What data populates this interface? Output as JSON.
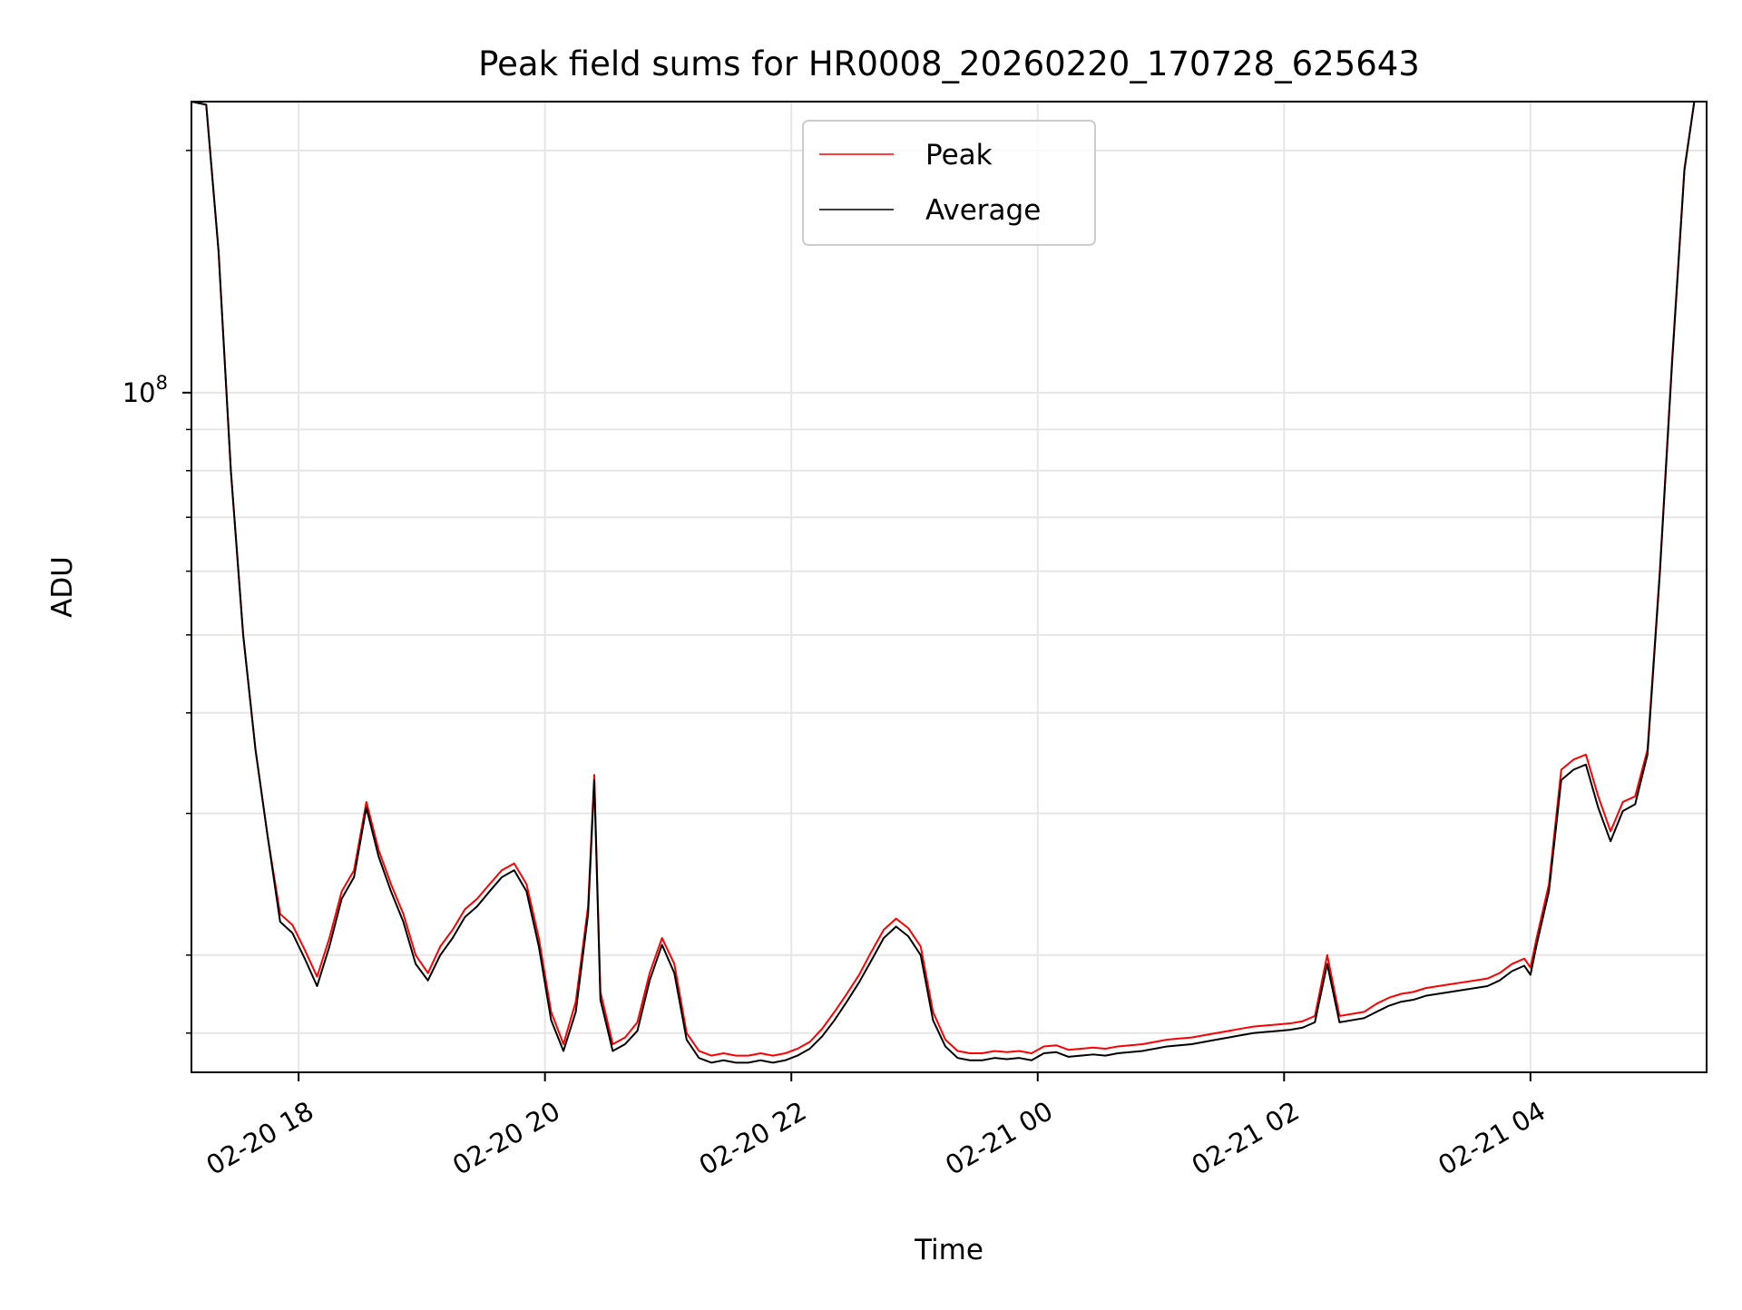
{
  "chart_data": {
    "type": "line",
    "title": "Peak field sums for HR0008_20260220_170728_625643",
    "xlabel": "Time",
    "ylabel": "ADU",
    "yscale": "log",
    "x_unit": "hours since 2026-02-20 00:00",
    "xlim": [
      17.13,
      29.43
    ],
    "ylim": [
      14300000,
      230000000
    ],
    "grid": true,
    "legend_position": "upper center",
    "x_ticks": [
      {
        "value": 18,
        "label": "02-20 18"
      },
      {
        "value": 20,
        "label": "02-20 20"
      },
      {
        "value": 22,
        "label": "02-20 22"
      },
      {
        "value": 24,
        "label": "02-21 00"
      },
      {
        "value": 26,
        "label": "02-21 02"
      },
      {
        "value": 28,
        "label": "02-21 04"
      }
    ],
    "y_major_ticks": [
      {
        "value": 100000000,
        "base": "10",
        "exp": "8"
      }
    ],
    "y_minor_ticks": [
      16000000,
      20000000,
      30000000,
      40000000,
      50000000,
      60000000,
      70000000,
      80000000,
      90000000,
      200000000
    ],
    "series": [
      {
        "name": "Peak",
        "color": "#ff0000",
        "points": [
          [
            17.13,
            230000000
          ],
          [
            17.25,
            228000000
          ],
          [
            17.35,
            150000000
          ],
          [
            17.45,
            80000000
          ],
          [
            17.55,
            50000000
          ],
          [
            17.65,
            36000000
          ],
          [
            17.75,
            28000000
          ],
          [
            17.85,
            22500000
          ],
          [
            17.95,
            21800000
          ],
          [
            18.05,
            20300000
          ],
          [
            18.15,
            18800000
          ],
          [
            18.25,
            21000000
          ],
          [
            18.35,
            24000000
          ],
          [
            18.45,
            25500000
          ],
          [
            18.55,
            31000000
          ],
          [
            18.65,
            27000000
          ],
          [
            18.75,
            24500000
          ],
          [
            18.85,
            22500000
          ],
          [
            18.95,
            20000000
          ],
          [
            19.05,
            19000000
          ],
          [
            19.15,
            20500000
          ],
          [
            19.25,
            21500000
          ],
          [
            19.35,
            22800000
          ],
          [
            19.45,
            23500000
          ],
          [
            19.55,
            24500000
          ],
          [
            19.65,
            25500000
          ],
          [
            19.75,
            26000000
          ],
          [
            19.85,
            24500000
          ],
          [
            19.95,
            21000000
          ],
          [
            20.05,
            17000000
          ],
          [
            20.15,
            15500000
          ],
          [
            20.25,
            17500000
          ],
          [
            20.35,
            23000000
          ],
          [
            20.4,
            33500000
          ],
          [
            20.45,
            18000000
          ],
          [
            20.55,
            15500000
          ],
          [
            20.65,
            15800000
          ],
          [
            20.75,
            16500000
          ],
          [
            20.85,
            19000000
          ],
          [
            20.95,
            21000000
          ],
          [
            21.05,
            19500000
          ],
          [
            21.15,
            16000000
          ],
          [
            21.25,
            15200000
          ],
          [
            21.35,
            15000000
          ],
          [
            21.45,
            15100000
          ],
          [
            21.55,
            15000000
          ],
          [
            21.65,
            15000000
          ],
          [
            21.75,
            15100000
          ],
          [
            21.85,
            15000000
          ],
          [
            21.95,
            15100000
          ],
          [
            22.05,
            15300000
          ],
          [
            22.15,
            15600000
          ],
          [
            22.25,
            16200000
          ],
          [
            22.35,
            17000000
          ],
          [
            22.45,
            17900000
          ],
          [
            22.55,
            18900000
          ],
          [
            22.65,
            20200000
          ],
          [
            22.75,
            21500000
          ],
          [
            22.85,
            22200000
          ],
          [
            22.95,
            21600000
          ],
          [
            23.05,
            20500000
          ],
          [
            23.15,
            17000000
          ],
          [
            23.25,
            15700000
          ],
          [
            23.35,
            15200000
          ],
          [
            23.45,
            15100000
          ],
          [
            23.55,
            15100000
          ],
          [
            23.65,
            15200000
          ],
          [
            23.75,
            15150000
          ],
          [
            23.85,
            15200000
          ],
          [
            23.95,
            15100000
          ],
          [
            24.05,
            15400000
          ],
          [
            24.15,
            15450000
          ],
          [
            24.25,
            15250000
          ],
          [
            24.35,
            15300000
          ],
          [
            24.45,
            15350000
          ],
          [
            24.55,
            15300000
          ],
          [
            24.65,
            15400000
          ],
          [
            24.75,
            15450000
          ],
          [
            24.85,
            15500000
          ],
          [
            24.95,
            15600000
          ],
          [
            25.05,
            15700000
          ],
          [
            25.15,
            15750000
          ],
          [
            25.25,
            15800000
          ],
          [
            25.35,
            15900000
          ],
          [
            25.45,
            16000000
          ],
          [
            25.55,
            16100000
          ],
          [
            25.65,
            16200000
          ],
          [
            25.75,
            16300000
          ],
          [
            25.85,
            16350000
          ],
          [
            25.95,
            16400000
          ],
          [
            26.05,
            16450000
          ],
          [
            26.15,
            16550000
          ],
          [
            26.25,
            16800000
          ],
          [
            26.35,
            20000000
          ],
          [
            26.45,
            16800000
          ],
          [
            26.55,
            16900000
          ],
          [
            26.65,
            17000000
          ],
          [
            26.75,
            17400000
          ],
          [
            26.85,
            17700000
          ],
          [
            26.95,
            17900000
          ],
          [
            27.05,
            18000000
          ],
          [
            27.15,
            18200000
          ],
          [
            27.25,
            18300000
          ],
          [
            27.35,
            18400000
          ],
          [
            27.45,
            18500000
          ],
          [
            27.55,
            18600000
          ],
          [
            27.65,
            18700000
          ],
          [
            27.75,
            19000000
          ],
          [
            27.85,
            19500000
          ],
          [
            27.95,
            19800000
          ],
          [
            28.0,
            19300000
          ],
          [
            28.05,
            21000000
          ],
          [
            28.15,
            24500000
          ],
          [
            28.25,
            34000000
          ],
          [
            28.35,
            35000000
          ],
          [
            28.45,
            35500000
          ],
          [
            28.55,
            31500000
          ],
          [
            28.65,
            28500000
          ],
          [
            28.75,
            31000000
          ],
          [
            28.85,
            31500000
          ],
          [
            28.95,
            36000000
          ],
          [
            29.05,
            60000000
          ],
          [
            29.15,
            110000000
          ],
          [
            29.25,
            190000000
          ],
          [
            29.33,
            230000000
          ],
          [
            29.43,
            230000000
          ]
        ]
      },
      {
        "name": "Average",
        "color": "#000000",
        "points": [
          [
            17.13,
            230000000
          ],
          [
            17.25,
            228000000
          ],
          [
            17.35,
            150000000
          ],
          [
            17.45,
            80000000
          ],
          [
            17.55,
            50000000
          ],
          [
            17.65,
            36000000
          ],
          [
            17.75,
            28000000
          ],
          [
            17.85,
            22000000
          ],
          [
            17.95,
            21300000
          ],
          [
            18.05,
            19800000
          ],
          [
            18.15,
            18300000
          ],
          [
            18.25,
            20500000
          ],
          [
            18.35,
            23500000
          ],
          [
            18.45,
            25000000
          ],
          [
            18.55,
            30500000
          ],
          [
            18.65,
            26500000
          ],
          [
            18.75,
            24000000
          ],
          [
            18.85,
            22000000
          ],
          [
            18.95,
            19500000
          ],
          [
            19.05,
            18600000
          ],
          [
            19.15,
            20000000
          ],
          [
            19.25,
            21000000
          ],
          [
            19.35,
            22300000
          ],
          [
            19.45,
            23000000
          ],
          [
            19.55,
            24000000
          ],
          [
            19.65,
            25000000
          ],
          [
            19.75,
            25500000
          ],
          [
            19.85,
            24000000
          ],
          [
            19.95,
            20500000
          ],
          [
            20.05,
            16600000
          ],
          [
            20.15,
            15200000
          ],
          [
            20.25,
            17000000
          ],
          [
            20.35,
            22500000
          ],
          [
            20.4,
            33000000
          ],
          [
            20.45,
            17600000
          ],
          [
            20.55,
            15200000
          ],
          [
            20.65,
            15500000
          ],
          [
            20.75,
            16100000
          ],
          [
            20.85,
            18600000
          ],
          [
            20.95,
            20600000
          ],
          [
            21.05,
            19000000
          ],
          [
            21.15,
            15700000
          ],
          [
            21.25,
            14900000
          ],
          [
            21.35,
            14700000
          ],
          [
            21.45,
            14800000
          ],
          [
            21.55,
            14700000
          ],
          [
            21.65,
            14700000
          ],
          [
            21.75,
            14800000
          ],
          [
            21.85,
            14700000
          ],
          [
            21.95,
            14800000
          ],
          [
            22.05,
            15000000
          ],
          [
            22.15,
            15300000
          ],
          [
            22.25,
            15850000
          ],
          [
            22.35,
            16600000
          ],
          [
            22.45,
            17500000
          ],
          [
            22.55,
            18500000
          ],
          [
            22.65,
            19700000
          ],
          [
            22.75,
            21000000
          ],
          [
            22.85,
            21700000
          ],
          [
            22.95,
            21100000
          ],
          [
            23.05,
            20000000
          ],
          [
            23.15,
            16600000
          ],
          [
            23.25,
            15400000
          ],
          [
            23.35,
            14900000
          ],
          [
            23.45,
            14800000
          ],
          [
            23.55,
            14800000
          ],
          [
            23.65,
            14900000
          ],
          [
            23.75,
            14850000
          ],
          [
            23.85,
            14900000
          ],
          [
            23.95,
            14800000
          ],
          [
            24.05,
            15100000
          ],
          [
            24.15,
            15150000
          ],
          [
            24.25,
            14950000
          ],
          [
            24.35,
            15000000
          ],
          [
            24.45,
            15050000
          ],
          [
            24.55,
            15000000
          ],
          [
            24.65,
            15100000
          ],
          [
            24.75,
            15150000
          ],
          [
            24.85,
            15200000
          ],
          [
            24.95,
            15300000
          ],
          [
            25.05,
            15400000
          ],
          [
            25.15,
            15450000
          ],
          [
            25.25,
            15500000
          ],
          [
            25.35,
            15600000
          ],
          [
            25.45,
            15700000
          ],
          [
            25.55,
            15800000
          ],
          [
            25.65,
            15900000
          ],
          [
            25.75,
            16000000
          ],
          [
            25.85,
            16050000
          ],
          [
            25.95,
            16100000
          ],
          [
            26.05,
            16150000
          ],
          [
            26.15,
            16250000
          ],
          [
            26.25,
            16500000
          ],
          [
            26.35,
            19500000
          ],
          [
            26.45,
            16500000
          ],
          [
            26.55,
            16600000
          ],
          [
            26.65,
            16700000
          ],
          [
            26.75,
            17000000
          ],
          [
            26.85,
            17300000
          ],
          [
            26.95,
            17500000
          ],
          [
            27.05,
            17600000
          ],
          [
            27.15,
            17800000
          ],
          [
            27.25,
            17900000
          ],
          [
            27.35,
            18000000
          ],
          [
            27.45,
            18100000
          ],
          [
            27.55,
            18200000
          ],
          [
            27.65,
            18300000
          ],
          [
            27.75,
            18600000
          ],
          [
            27.85,
            19100000
          ],
          [
            27.95,
            19400000
          ],
          [
            28.0,
            18900000
          ],
          [
            28.05,
            20600000
          ],
          [
            28.15,
            24000000
          ],
          [
            28.25,
            33000000
          ],
          [
            28.35,
            34000000
          ],
          [
            28.45,
            34500000
          ],
          [
            28.55,
            30500000
          ],
          [
            28.65,
            27700000
          ],
          [
            28.75,
            30200000
          ],
          [
            28.85,
            30800000
          ],
          [
            28.95,
            35500000
          ],
          [
            29.05,
            59500000
          ],
          [
            29.15,
            109000000
          ],
          [
            29.25,
            189000000
          ],
          [
            29.33,
            230000000
          ],
          [
            29.43,
            230000000
          ]
        ]
      }
    ]
  }
}
